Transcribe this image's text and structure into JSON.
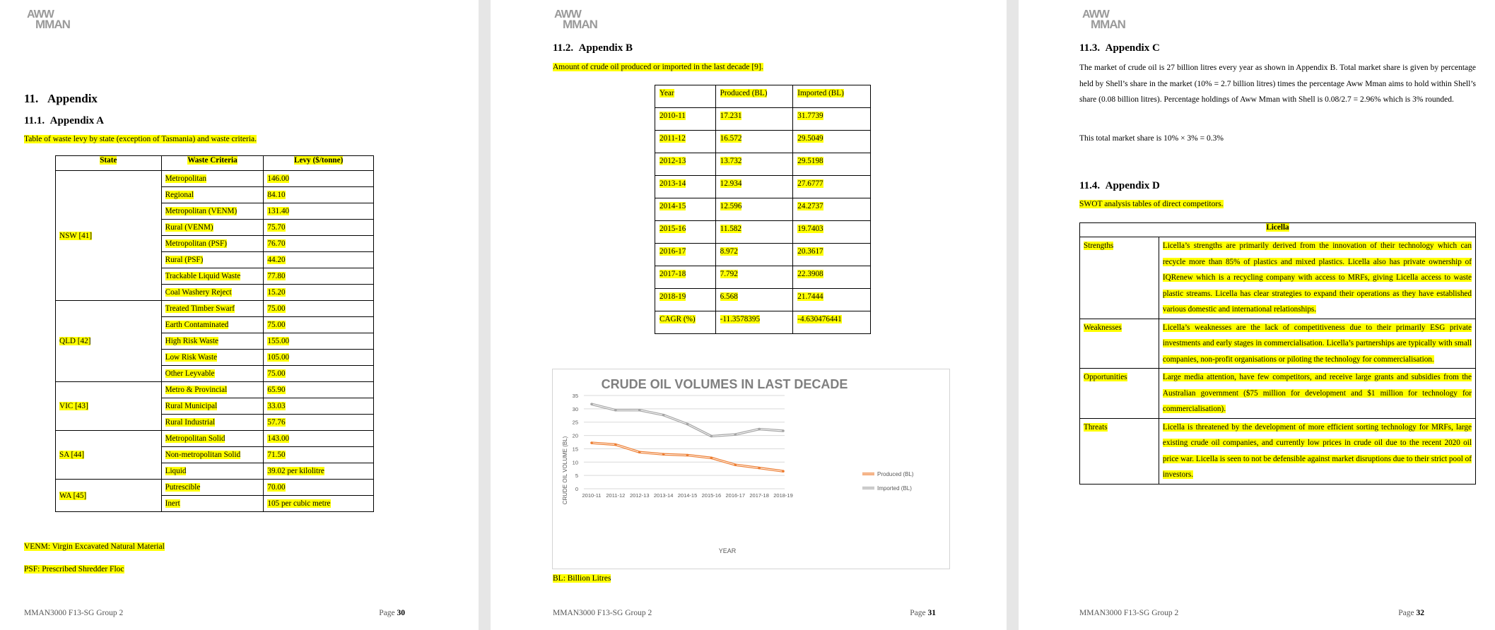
{
  "logo": {
    "line1": "AWW",
    "line2": "MMAN"
  },
  "footer": {
    "left": "MMAN3000 F13-SG Group 2",
    "page_label": "Page",
    "pages": [
      "30",
      "31",
      "32"
    ]
  },
  "page30": {
    "heading": "11.   Appendix",
    "sub": "11.1.  Appendix A",
    "caption": "Table of waste levy by state (exception of Tasmania) and waste criteria.",
    "headers": [
      "State",
      "Waste Criteria",
      "Levy ($/tonne)"
    ],
    "groups": [
      {
        "state": "NSW [41]",
        "rows": [
          [
            "Metropolitan",
            "146.00"
          ],
          [
            "Regional",
            "84.10"
          ],
          [
            "Metropolitan (VENM)",
            "131.40"
          ],
          [
            "Rural (VENM)",
            "75.70"
          ],
          [
            "Metropolitan (PSF)",
            "76.70"
          ],
          [
            "Rural (PSF)",
            "44.20"
          ],
          [
            "Trackable Liquid Waste",
            "77.80"
          ],
          [
            "Coal Washery Reject",
            "15.20"
          ]
        ]
      },
      {
        "state": "QLD [42]",
        "rows": [
          [
            "Treated Timber Swarf",
            "75.00"
          ],
          [
            "Earth Contaminated",
            "75.00"
          ],
          [
            "High Risk Waste",
            "155.00"
          ],
          [
            "Low Risk Waste",
            "105.00"
          ],
          [
            "Other Leyvable",
            "75.00"
          ]
        ]
      },
      {
        "state": "VIC [43]",
        "rows": [
          [
            "Metro & Provincial",
            "65.90"
          ],
          [
            "Rural Municipal",
            "33.03"
          ],
          [
            "Rural Industrial",
            "57.76"
          ]
        ]
      },
      {
        "state": "SA [44]",
        "rows": [
          [
            "Metropolitan Solid",
            "143.00"
          ],
          [
            "Non-metropolitan Solid",
            "71.50"
          ],
          [
            "Liquid",
            "39.02 per kilolitre"
          ]
        ]
      },
      {
        "state": "WA [45]",
        "rows": [
          [
            "Putrescible",
            "70.00"
          ],
          [
            "Inert",
            "105 per cubic metre"
          ]
        ]
      }
    ],
    "note1": "VENM: Virgin Excavated Natural Material",
    "note2": "PSF: Prescribed Shredder Floc"
  },
  "page31": {
    "sub": "11.2.  Appendix B",
    "caption": "Amount of crude oil produced or imported in the last decade [9].",
    "headers": [
      "Year",
      "Produced (BL)",
      "Imported (BL)"
    ],
    "rows": [
      [
        "2010-11",
        "17.231",
        "31.7739"
      ],
      [
        "2011-12",
        "16.572",
        "29.5049"
      ],
      [
        "2012-13",
        "13.732",
        "29.5198"
      ],
      [
        "2013-14",
        "12.934",
        "27.6777"
      ],
      [
        "2014-15",
        "12.596",
        "24.2737"
      ],
      [
        "2015-16",
        "11.582",
        "19.7403"
      ],
      [
        "2016-17",
        "8.972",
        "20.3617"
      ],
      [
        "2017-18",
        "7.792",
        "22.3908"
      ],
      [
        "2018-19",
        "6.568",
        "21.7444"
      ],
      [
        "CAGR (%)",
        "-11.3578395",
        "-4.630476441"
      ]
    ],
    "note": "BL: Billion Litres"
  },
  "chart_data": {
    "type": "line",
    "title": "CRUDE OIL VOLUMES IN LAST DECADE",
    "xlabel": "YEAR",
    "ylabel": "CRUDE OIL VOLUME (BL)",
    "categories": [
      "2010-11",
      "2011-12",
      "2012-13",
      "2013-14",
      "2014-15",
      "2015-16",
      "2016-17",
      "2017-18",
      "2018-19"
    ],
    "ylim": [
      0,
      35
    ],
    "yticks": [
      "0",
      "5",
      "10",
      "15",
      "20",
      "25",
      "30",
      "35"
    ],
    "grid": true,
    "legend": "right",
    "series": [
      {
        "name": "Produced (BL)",
        "color": "#ed7d31",
        "values": [
          17.231,
          16.572,
          13.732,
          12.934,
          12.596,
          11.582,
          8.972,
          7.792,
          6.568
        ]
      },
      {
        "name": "Imported (BL)",
        "color": "#a5a5a5",
        "values": [
          31.7739,
          29.5049,
          29.5198,
          27.6777,
          24.2737,
          19.7403,
          20.3617,
          22.3908,
          21.7444
        ]
      }
    ]
  },
  "page32": {
    "subC": "11.3.  Appendix C",
    "paraC": "The market of crude oil is 27 billion litres every year as shown in Appendix B. Total market share is given by percentage held by Shell’s share in the market (10% = 2.7 billion litres) times the percentage Aww Mman aims to hold within Shell’s share (0.08 billion litres). Percentage holdings of Aww Mman with Shell is 0.08/2.7 = 2.96% which is 3% rounded.",
    "paraC2": "This total market share is 10% × 3% = 0.3%",
    "subD": "11.4.  Appendix D",
    "captionD": "SWOT analysis tables of direct competitors.",
    "swot_title": "Licella",
    "swot": [
      [
        "Strengths",
        "Licella’s strengths are primarily derived from the innovation of their technology which can recycle more than 85% of plastics and mixed plastics. Licella also has private ownership of IQRenew which is a recycling company with access to MRFs, giving Licella access to waste plastic streams. Licella has clear strategies to expand their operations as they have established various domestic and international relationships."
      ],
      [
        "Weaknesses",
        "Licella’s weaknesses are the lack of competitiveness due to their primarily ESG private investments and early stages in commercialisation. Licella’s partnerships are typically with small companies, non-profit organisations or piloting the technology for commercialisation."
      ],
      [
        "Opportunities",
        "Large media attention, have few competitors, and receive large grants and subsidies from the Australian government ($75 million for development and $1 million for technology for commercialisation)."
      ],
      [
        "Threats",
        "Licella is threatened by the development of more efficient sorting technology for MRFs, large existing crude oil companies, and currently low prices in crude oil due to the recent 2020 oil price war. Licella is seen to not be defensible against market disruptions due to their strict pool of investors."
      ]
    ]
  }
}
